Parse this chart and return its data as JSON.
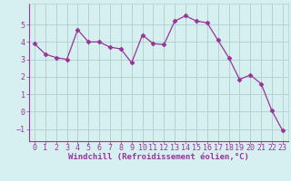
{
  "x": [
    0,
    1,
    2,
    3,
    4,
    5,
    6,
    7,
    8,
    9,
    10,
    11,
    12,
    13,
    14,
    15,
    16,
    17,
    18,
    19,
    20,
    21,
    22,
    23
  ],
  "y": [
    3.9,
    3.3,
    3.1,
    3.0,
    4.7,
    4.0,
    4.0,
    3.7,
    3.6,
    2.8,
    4.4,
    3.9,
    3.85,
    5.2,
    5.5,
    5.2,
    5.1,
    4.1,
    3.1,
    1.85,
    2.1,
    1.6,
    0.05,
    -1.1
  ],
  "line_color": "#993399",
  "marker": "D",
  "marker_size": 2.5,
  "bg_color": "#d6f0ef",
  "grid_color": "#b0cece",
  "xlabel": "Windchill (Refroidissement éolien,°C)",
  "xlabel_color": "#993399",
  "xlabel_fontsize": 6.5,
  "tick_color": "#993399",
  "tick_fontsize": 6.0,
  "ylim": [
    -1.7,
    6.2
  ],
  "yticks": [
    -1,
    0,
    1,
    2,
    3,
    4,
    5
  ],
  "xlim": [
    -0.5,
    23.5
  ],
  "xticks": [
    0,
    1,
    2,
    3,
    4,
    5,
    6,
    7,
    8,
    9,
    10,
    11,
    12,
    13,
    14,
    15,
    16,
    17,
    18,
    19,
    20,
    21,
    22,
    23
  ],
  "line_width": 0.9
}
